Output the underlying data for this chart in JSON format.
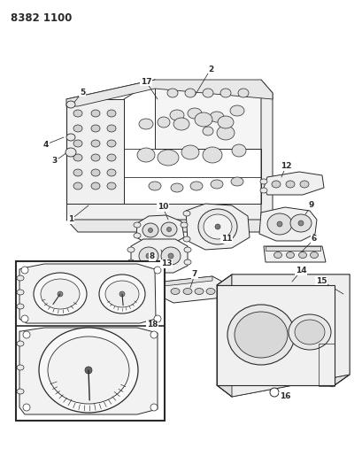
{
  "title": "8382 1100",
  "bg": "#ffffff",
  "lc": "#2a2a2a",
  "fig_w": 4.1,
  "fig_h": 5.33,
  "dpi": 100
}
